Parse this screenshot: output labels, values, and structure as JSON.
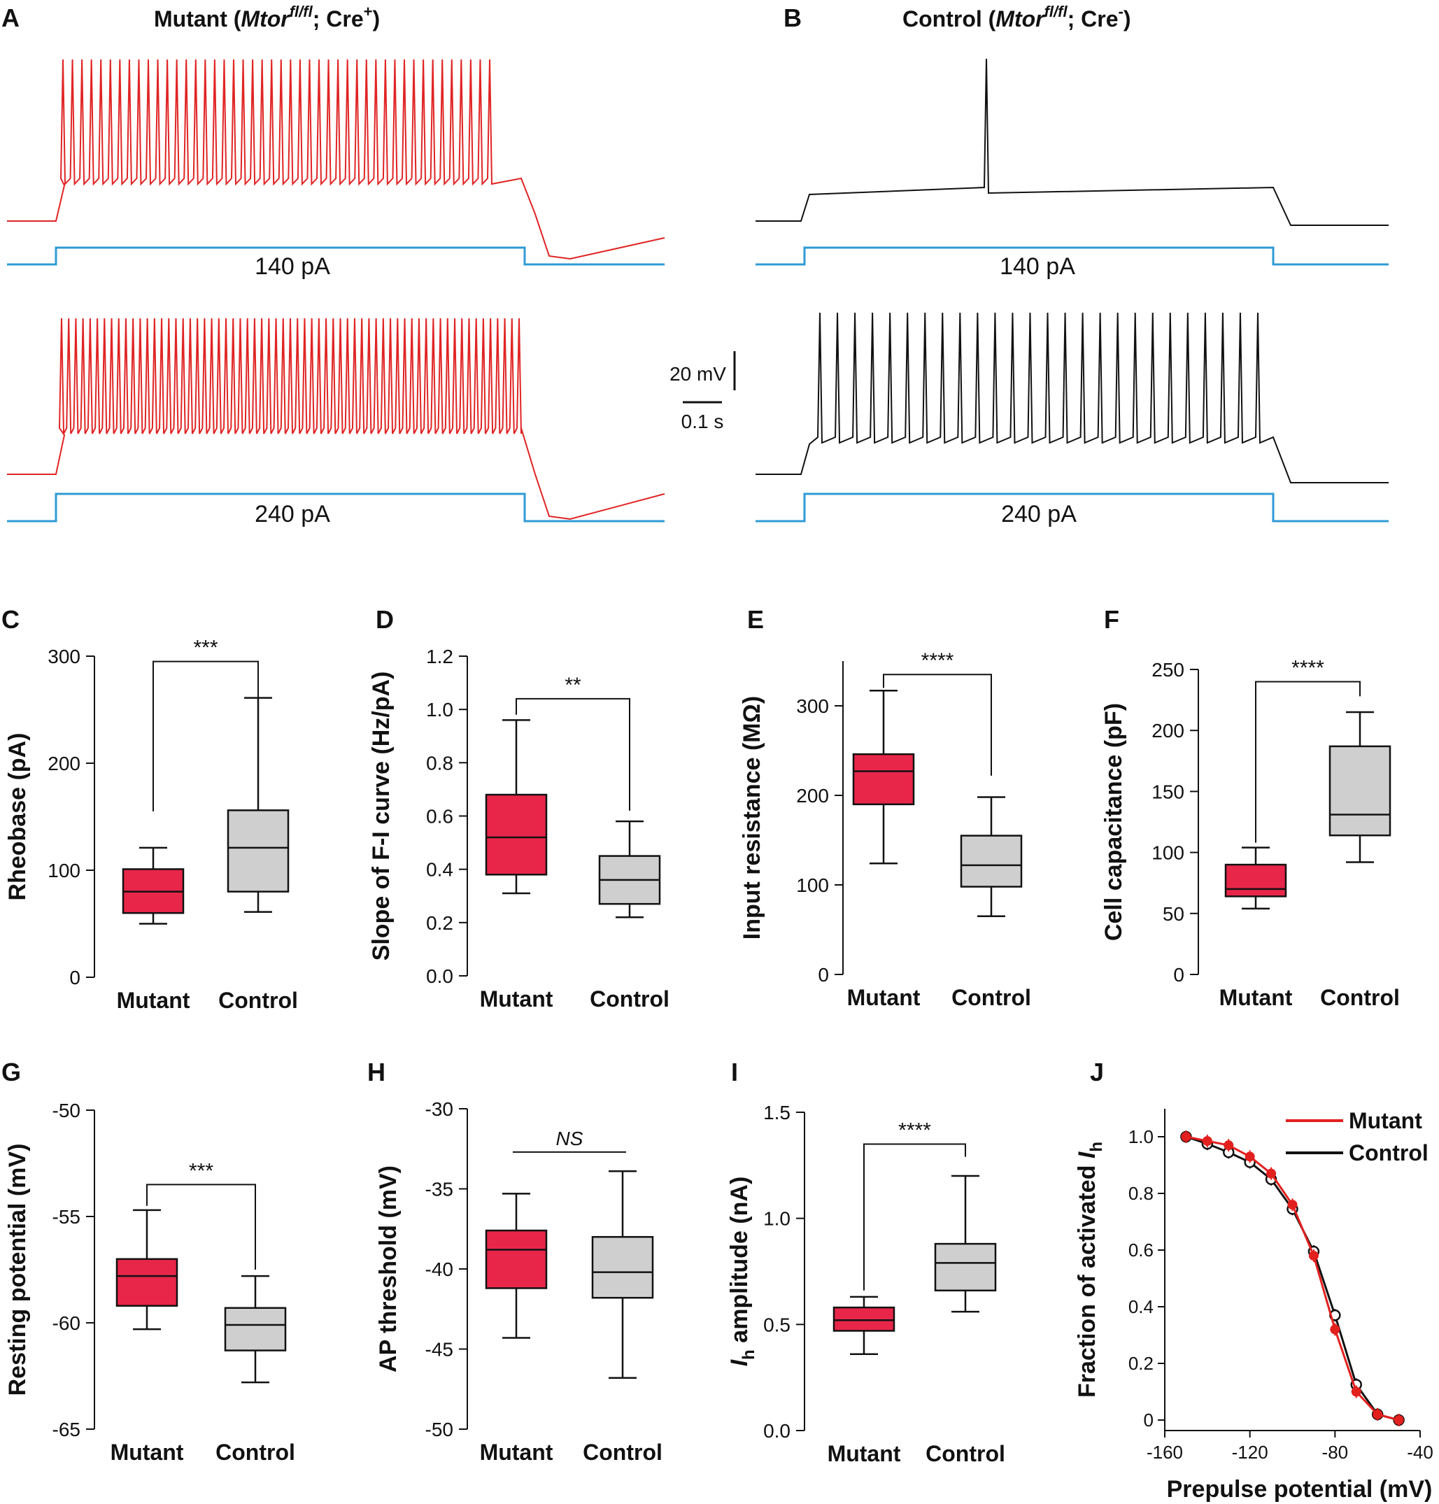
{
  "colors": {
    "mutant": "#e8264a",
    "mutant_line": "#e2201e",
    "control_box": "#cfcfcf",
    "trace_mutant": "#e02424",
    "trace_control": "#111111",
    "stim": "#2f9bd5"
  },
  "panelA": {
    "label": "A",
    "title_prefix": "Mutant (",
    "gene": "Mtor",
    "sup": "fl/fl",
    "title_mid": "; Cre",
    "cre_sup": "+",
    "title_suffix": ")",
    "stim_top": "140 pA",
    "stim_bottom": "240 pA"
  },
  "panelB": {
    "label": "B",
    "title_prefix": "Control (",
    "gene": "Mtor",
    "sup": "fl/fl",
    "title_mid": "; Cre",
    "cre_sup": "-",
    "title_suffix": ")",
    "stim_top": "140 pA",
    "stim_bottom": "240 pA"
  },
  "scalebar": {
    "voltage": "20 mV",
    "time": "0.1 s"
  },
  "chart_data": [
    {
      "id": "C",
      "type": "box",
      "ylabel": "Rheobase (pA)",
      "ylim": [
        0,
        300
      ],
      "yticks": [
        0,
        100,
        200,
        300
      ],
      "ytick_labels": [
        "0",
        "100",
        "200",
        "300"
      ],
      "categories": [
        "Mutant",
        "Control"
      ],
      "boxes": [
        {
          "name": "Mutant",
          "min": 50,
          "q1": 60,
          "median": 80,
          "q3": 101,
          "max": 121
        },
        {
          "name": "Control",
          "min": 61,
          "q1": 80,
          "median": 121,
          "q3": 156,
          "max": 261
        }
      ],
      "significance": "***",
      "bracket_y": [
        295,
        295
      ],
      "bracket_drop": [
        155,
        261
      ]
    },
    {
      "id": "D",
      "type": "box",
      "ylabel": "Slope of F-I curve (Hz/pA)",
      "ylim": [
        0,
        1.2
      ],
      "yticks": [
        0,
        0.2,
        0.4,
        0.6,
        0.8,
        1.0,
        1.2
      ],
      "ytick_labels": [
        "0.0",
        "0.2",
        "0.4",
        "0.6",
        "0.8",
        "1.0",
        "1.2"
      ],
      "categories": [
        "Mutant",
        "Control"
      ],
      "boxes": [
        {
          "name": "Mutant",
          "min": 0.31,
          "q1": 0.38,
          "median": 0.52,
          "q3": 0.68,
          "max": 0.96
        },
        {
          "name": "Control",
          "min": 0.22,
          "q1": 0.27,
          "median": 0.36,
          "q3": 0.45,
          "max": 0.58
        }
      ],
      "significance": "**",
      "bracket_y": [
        1.04,
        1.04
      ],
      "bracket_drop": [
        0.98,
        0.62
      ]
    },
    {
      "id": "E",
      "type": "box",
      "ylabel": "Input resistance (MΩ)",
      "ylim": [
        0,
        350
      ],
      "yticks": [
        0,
        100,
        200,
        300
      ],
      "ytick_labels": [
        "0",
        "100",
        "200",
        "300"
      ],
      "categories": [
        "Mutant",
        "Control"
      ],
      "boxes": [
        {
          "name": "Mutant",
          "min": 124,
          "q1": 190,
          "median": 227,
          "q3": 246,
          "max": 317
        },
        {
          "name": "Control",
          "min": 65,
          "q1": 98,
          "median": 122,
          "q3": 155,
          "max": 198
        }
      ],
      "significance": "****",
      "bracket_y": [
        335,
        335
      ],
      "bracket_drop": [
        320,
        222
      ]
    },
    {
      "id": "F",
      "type": "box",
      "ylabel": "Cell capacitance (pF)",
      "ylim": [
        0,
        250
      ],
      "yticks": [
        0,
        50,
        100,
        150,
        200,
        250
      ],
      "ytick_labels": [
        "0",
        "50",
        "100",
        "150",
        "200",
        "250"
      ],
      "categories": [
        "Mutant",
        "Control"
      ],
      "boxes": [
        {
          "name": "Mutant",
          "min": 54,
          "q1": 64,
          "median": 70,
          "q3": 90,
          "max": 104
        },
        {
          "name": "Control",
          "min": 92,
          "q1": 114,
          "median": 131,
          "q3": 187,
          "max": 215
        }
      ],
      "significance": "****",
      "bracket_y": [
        240,
        240
      ],
      "bracket_drop": [
        108,
        228
      ]
    },
    {
      "id": "G",
      "type": "box",
      "ylabel": "Resting potential (mV)",
      "ylim": [
        -65,
        -50
      ],
      "yticks": [
        -65,
        -60,
        -55,
        -50
      ],
      "ytick_labels": [
        "-65",
        "-60",
        "-55",
        "-50"
      ],
      "categories": [
        "Mutant",
        "Control"
      ],
      "boxes": [
        {
          "name": "Mutant",
          "min": -60.3,
          "q1": -59.2,
          "median": -57.8,
          "q3": -57.0,
          "max": -54.7
        },
        {
          "name": "Control",
          "min": -62.8,
          "q1": -61.3,
          "median": -60.1,
          "q3": -59.3,
          "max": -57.8
        }
      ],
      "significance": "***",
      "bracket_y": [
        -53.5,
        -53.5
      ],
      "bracket_drop": [
        -54.5,
        -57.5
      ]
    },
    {
      "id": "H",
      "type": "box",
      "ylabel": "AP threshold (mV)",
      "ylim": [
        -50,
        -30
      ],
      "yticks": [
        -50,
        -45,
        -40,
        -35,
        -30
      ],
      "ytick_labels": [
        "-50",
        "-45",
        "-40",
        "-35",
        "-30"
      ],
      "categories": [
        "Mutant",
        "Control"
      ],
      "boxes": [
        {
          "name": "Mutant",
          "min": -44.3,
          "q1": -41.2,
          "median": -38.8,
          "q3": -37.6,
          "max": -35.3
        },
        {
          "name": "Control",
          "min": -46.8,
          "q1": -41.8,
          "median": -40.2,
          "q3": -38.0,
          "max": -33.9
        }
      ],
      "significance": "NS",
      "bracket_y": [
        -32.7,
        -32.7
      ],
      "bracket_drop": null
    },
    {
      "id": "I",
      "type": "box",
      "ylabel": "Ih amplitude (nA)",
      "ylabel_main": "I",
      "ylabel_sub": "h",
      "ylabel_rest": " amplitude (nA)",
      "ylim": [
        0,
        1.5
      ],
      "yticks": [
        0,
        0.5,
        1.0,
        1.5
      ],
      "ytick_labels": [
        "0.0",
        "0.5",
        "1.0",
        "1.5"
      ],
      "categories": [
        "Mutant",
        "Control"
      ],
      "boxes": [
        {
          "name": "Mutant",
          "min": 0.36,
          "q1": 0.47,
          "median": 0.52,
          "q3": 0.58,
          "max": 0.63
        },
        {
          "name": "Control",
          "min": 0.56,
          "q1": 0.66,
          "median": 0.79,
          "q3": 0.88,
          "max": 1.2
        }
      ],
      "significance": "****",
      "bracket_y": [
        1.35,
        1.35
      ],
      "bracket_drop": [
        0.66,
        1.29
      ]
    },
    {
      "id": "J",
      "type": "line",
      "xlabel": "Prepulse potential (mV)",
      "ylabel": "Fraction of activated Ih",
      "ylabel_main": "Fraction of activated ",
      "ylabel_it": "I",
      "ylabel_sub": "h",
      "xlim": [
        -160,
        -40
      ],
      "ylim": [
        0,
        1.1
      ],
      "xticks": [
        -160,
        -120,
        -80,
        -40
      ],
      "xtick_labels": [
        "-160",
        "-120",
        "-80",
        "-40"
      ],
      "yticks": [
        0,
        0.2,
        0.4,
        0.6,
        0.8,
        1.0
      ],
      "ytick_labels": [
        "0",
        "0.2",
        "0.4",
        "0.6",
        "0.8",
        "1.0"
      ],
      "x": [
        -150,
        -140,
        -130,
        -120,
        -110,
        -100,
        -90,
        -80,
        -70,
        -60,
        -50
      ],
      "series": [
        {
          "name": "Mutant",
          "values": [
            1.0,
            0.985,
            0.97,
            0.93,
            0.87,
            0.76,
            0.58,
            0.32,
            0.1,
            0.02,
            0.0
          ]
        },
        {
          "name": "Control",
          "values": [
            1.0,
            0.975,
            0.945,
            0.91,
            0.85,
            0.745,
            0.595,
            0.37,
            0.125,
            0.02,
            0.0
          ]
        }
      ],
      "legend": [
        "Mutant",
        "Control"
      ]
    }
  ]
}
